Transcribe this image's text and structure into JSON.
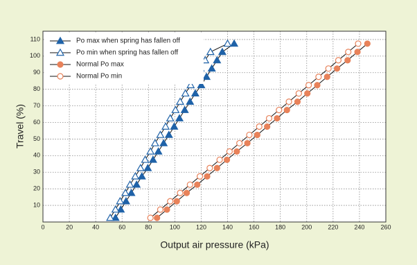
{
  "chart_data": {
    "type": "line",
    "xlabel": "Output air pressure (kPa)",
    "ylabel": "Travel (%)",
    "xlim": [
      0,
      260
    ],
    "xticks": [
      0,
      20,
      40,
      60,
      80,
      100,
      120,
      140,
      160,
      180,
      200,
      220,
      240,
      260
    ],
    "ylim": [
      0,
      115
    ],
    "yticks": [
      10,
      20,
      30,
      40,
      50,
      60,
      70,
      80,
      90,
      100,
      110
    ],
    "grid": true,
    "legend": "upper-left",
    "series": [
      {
        "name": "Po max when spring has fallen off",
        "color": "#1f62a8",
        "marker": "triangle",
        "filled": true,
        "x": [
          55,
          59,
          63,
          67,
          71,
          75,
          79.5,
          83.5,
          87.5,
          91.5,
          95.5,
          99.5,
          103.5,
          107.5,
          111.5,
          115.5,
          120,
          124,
          128,
          132,
          136,
          145
        ],
        "values": [
          2.5,
          7.5,
          12.5,
          17.5,
          22.5,
          27.5,
          32.5,
          37.5,
          42.5,
          47.5,
          52.5,
          57.5,
          62.5,
          67.5,
          72.5,
          77.5,
          82.5,
          87.5,
          92.5,
          97.5,
          102.5,
          107.5
        ]
      },
      {
        "name": "Po min when spring has fallen off",
        "color": "#1f62a8",
        "marker": "triangle",
        "filled": false,
        "x": [
          51,
          55,
          58.5,
          62.5,
          66,
          70,
          74,
          77.5,
          81.5,
          85,
          89,
          93,
          96.5,
          100.5,
          104,
          108,
          112,
          115.5,
          119.5,
          123,
          127,
          140
        ],
        "values": [
          2.5,
          7.5,
          12.5,
          17.5,
          22.5,
          27.5,
          32.5,
          37.5,
          42.5,
          47.5,
          52.5,
          57.5,
          62.5,
          67.5,
          72.5,
          77.5,
          82.5,
          87.5,
          92.5,
          97.5,
          102.5,
          107.5
        ]
      },
      {
        "name": "Normal Po max",
        "color": "#e8825a",
        "marker": "circle",
        "filled": true,
        "x": [
          86.5,
          94,
          101.5,
          109,
          117,
          124.5,
          132,
          139.5,
          147,
          155,
          162.5,
          170,
          177.5,
          185,
          193,
          200.5,
          208,
          215.5,
          223,
          231,
          238.5,
          246
        ],
        "values": [
          2.5,
          7.5,
          12.5,
          17.5,
          22.5,
          27.5,
          32.5,
          37.5,
          42.5,
          47.5,
          52.5,
          57.5,
          62.5,
          67.5,
          72.5,
          77.5,
          82.5,
          87.5,
          92.5,
          97.5,
          102.5,
          107.5
        ]
      },
      {
        "name": "Normal Po min",
        "color": "#e8825a",
        "marker": "circle",
        "filled": false,
        "x": [
          81.5,
          89,
          96.5,
          104,
          111.5,
          119,
          126.5,
          134,
          141.5,
          149,
          156.5,
          164,
          171.5,
          179,
          186.5,
          194,
          201.5,
          209,
          216.5,
          224,
          231.5,
          239
        ],
        "values": [
          2.5,
          7.5,
          12.5,
          17.5,
          22.5,
          27.5,
          32.5,
          37.5,
          42.5,
          47.5,
          52.5,
          57.5,
          62.5,
          67.5,
          72.5,
          77.5,
          82.5,
          87.5,
          92.5,
          97.5,
          102.5,
          107.5
        ]
      }
    ]
  }
}
